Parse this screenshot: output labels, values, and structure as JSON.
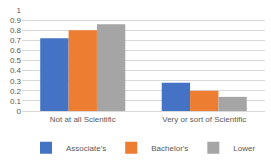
{
  "chart_data": {
    "type": "bar",
    "categories": [
      "Not at all Scientific",
      "Very or sort of Scientific"
    ],
    "series": [
      {
        "name": "Associate's",
        "color": "#4472c4",
        "values": [
          0.72,
          0.28
        ]
      },
      {
        "name": "Bachelor's",
        "color": "#ed7d31",
        "values": [
          0.8,
          0.2
        ]
      },
      {
        "name": "Lower",
        "color": "#a5a5a5",
        "values": [
          0.86,
          0.14
        ]
      }
    ],
    "ylim": [
      0,
      1
    ],
    "yticks": [
      0,
      0.1,
      0.2,
      0.3,
      0.4,
      0.5,
      0.6,
      0.7,
      0.8,
      0.9,
      1
    ],
    "grid": true,
    "legend": "bottom"
  }
}
